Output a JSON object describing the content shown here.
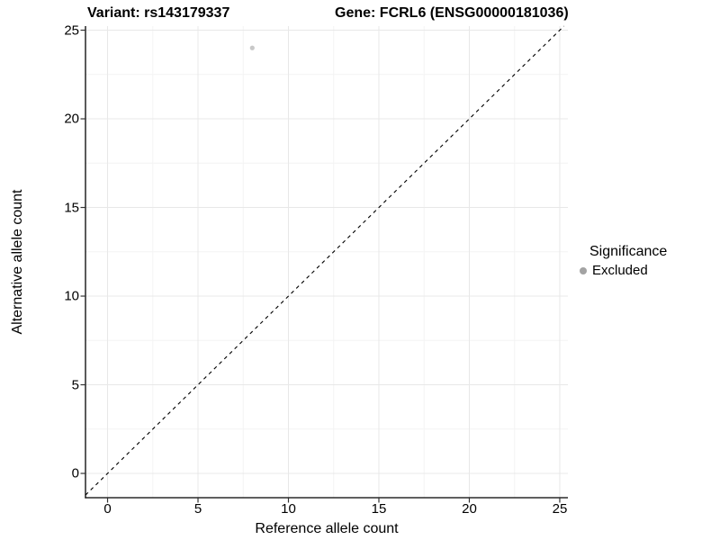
{
  "header": {
    "variant_title": "Variant: rs143179337",
    "gene_title": "Gene: FCRL6 (ENSG00000181036)"
  },
  "chart_data": {
    "type": "scatter",
    "title_left": "Variant: rs143179337",
    "title_right": "Gene: FCRL6 (ENSG00000181036)",
    "xlabel": "Reference allele count",
    "ylabel": "Alternative allele count",
    "xlim": [
      -1.22,
      25.45
    ],
    "ylim": [
      -1.37,
      25.23
    ],
    "xticks": [
      0,
      5,
      10,
      15,
      20,
      25
    ],
    "yticks": [
      0,
      5,
      10,
      15,
      20,
      25
    ],
    "minor_step": 2.5,
    "grid": true,
    "points": [
      {
        "x": 8,
        "y": 24,
        "series": "Excluded"
      }
    ],
    "reference_line": {
      "type": "abline",
      "slope": 1,
      "intercept": 0,
      "style": "dashed",
      "color": "#000000"
    },
    "legend": {
      "title": "Significance",
      "position": "right",
      "items": [
        {
          "label": "Excluded",
          "key_color": "#a3a3a3"
        }
      ]
    },
    "colors": {
      "point": "#c8c8c8",
      "grid_major": "#e8e8e8",
      "grid_minor": "#f4f4f4",
      "axis_line": "#000000",
      "tick_mark": "#333333",
      "text": "#000000"
    }
  }
}
